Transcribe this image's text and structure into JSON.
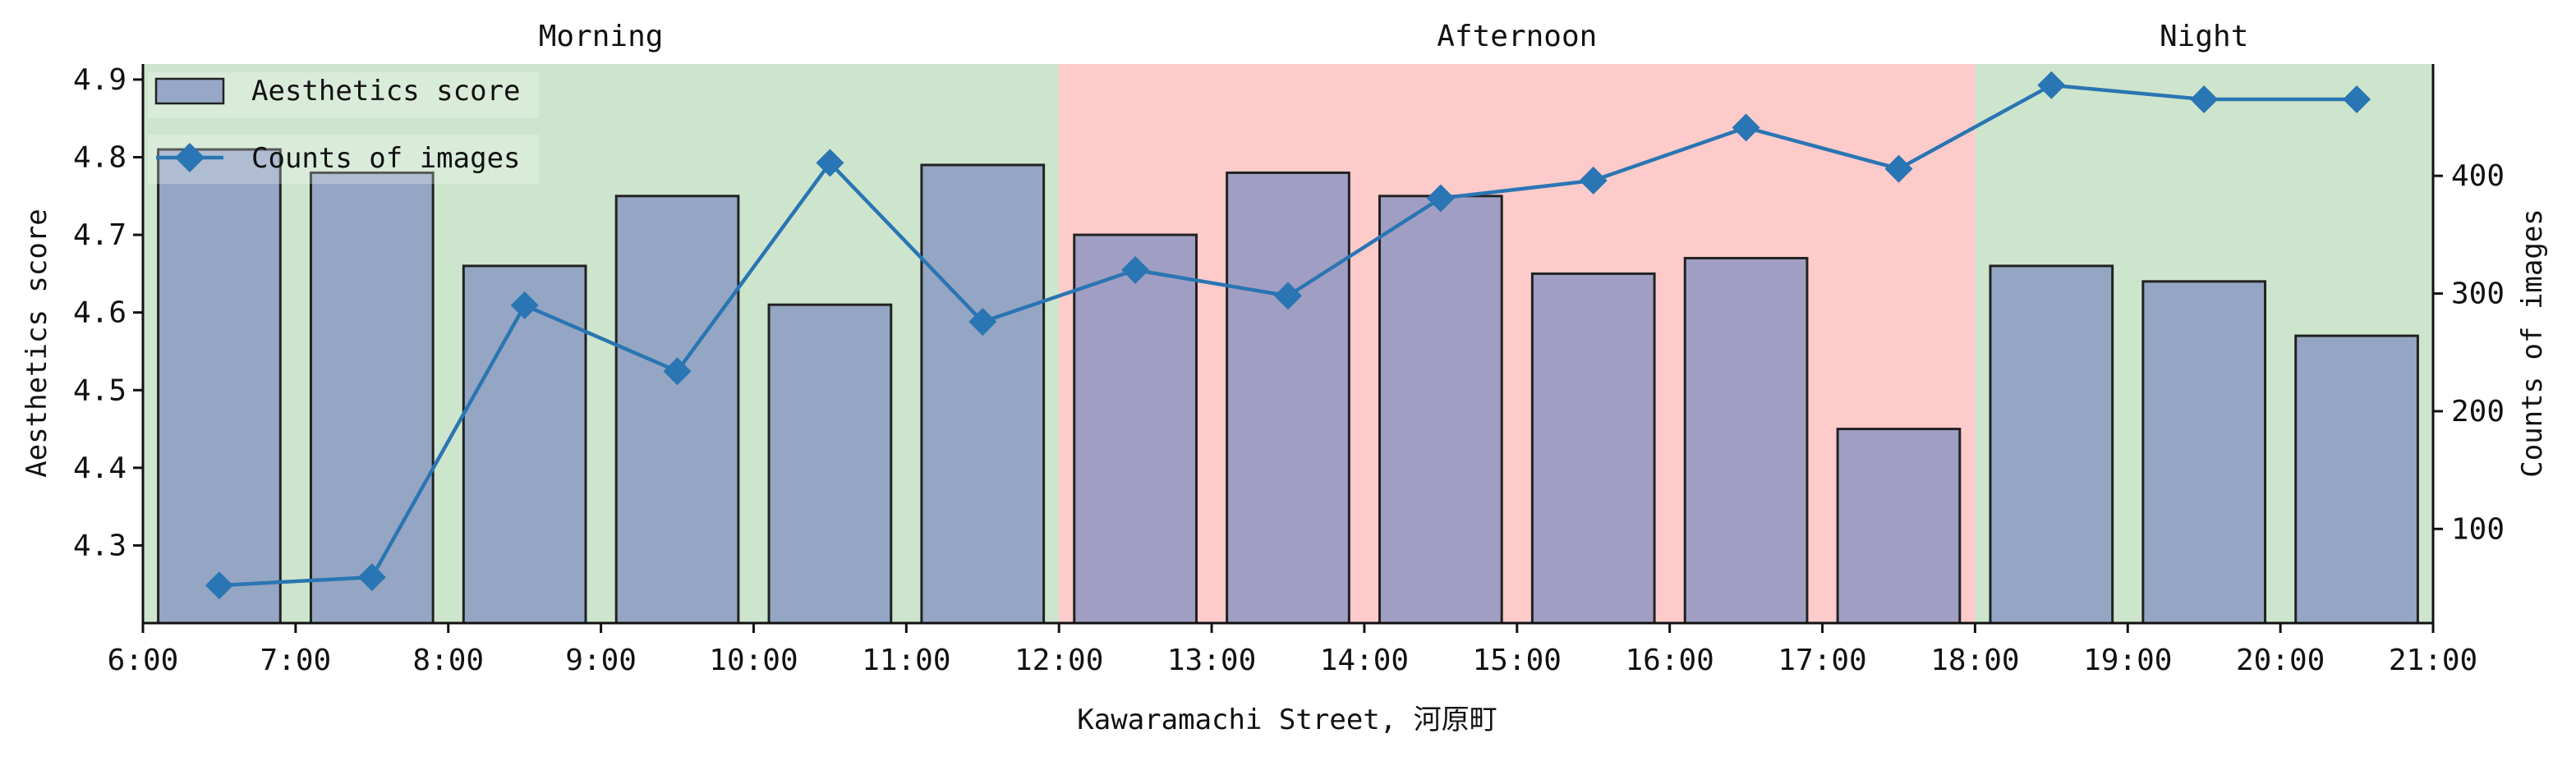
{
  "chart_data": {
    "type": "bar+line",
    "xlabel": "Kawaramachi Street, 河原町",
    "ylabel_left": "Aesthetics score",
    "ylabel_right": "Counts of images",
    "x_ticks": [
      "6:00",
      "7:00",
      "8:00",
      "9:00",
      "10:00",
      "11:00",
      "12:00",
      "13:00",
      "14:00",
      "15:00",
      "16:00",
      "17:00",
      "18:00",
      "19:00",
      "20:00",
      "21:00"
    ],
    "x_range": [
      6,
      21
    ],
    "y_left_range": [
      4.2,
      4.92
    ],
    "y_left_ticks": [
      "4.3",
      "4.4",
      "4.5",
      "4.6",
      "4.7",
      "4.8",
      "4.9"
    ],
    "y_right_range": [
      20,
      495
    ],
    "y_right_ticks": [
      "100",
      "200",
      "300",
      "400"
    ],
    "periods": [
      {
        "label": "Morning",
        "start": 6,
        "end": 12,
        "color": "#cde5cc"
      },
      {
        "label": "Afternoon",
        "start": 12,
        "end": 18,
        "color": "#fecbcb"
      },
      {
        "label": "Night",
        "start": 18,
        "end": 21,
        "color": "#cde5cc"
      }
    ],
    "series": [
      {
        "name": "Aesthetics score",
        "kind": "bar",
        "axis": "left",
        "color": "#8090c0",
        "x": [
          6.5,
          7.5,
          8.5,
          9.5,
          10.5,
          11.5,
          12.5,
          13.5,
          14.5,
          15.5,
          16.5,
          17.5,
          18.5,
          19.5,
          20.5
        ],
        "values": [
          4.81,
          4.78,
          4.66,
          4.75,
          4.61,
          4.79,
          4.7,
          4.78,
          4.75,
          4.65,
          4.67,
          4.45,
          4.66,
          4.64,
          4.57
        ]
      },
      {
        "name": "Counts of images",
        "kind": "line",
        "axis": "right",
        "color": "#2a75b3",
        "marker": "diamond",
        "x": [
          6.5,
          7.5,
          8.5,
          9.5,
          10.5,
          11.5,
          12.5,
          13.5,
          14.5,
          15.5,
          16.5,
          17.5,
          18.5,
          19.5,
          20.5
        ],
        "values": [
          52,
          59,
          290,
          234,
          411,
          276,
          320,
          298,
          381,
          396,
          441,
          406,
          477,
          465,
          465
        ]
      }
    ],
    "legend_position": "upper-left",
    "grid": false
  }
}
